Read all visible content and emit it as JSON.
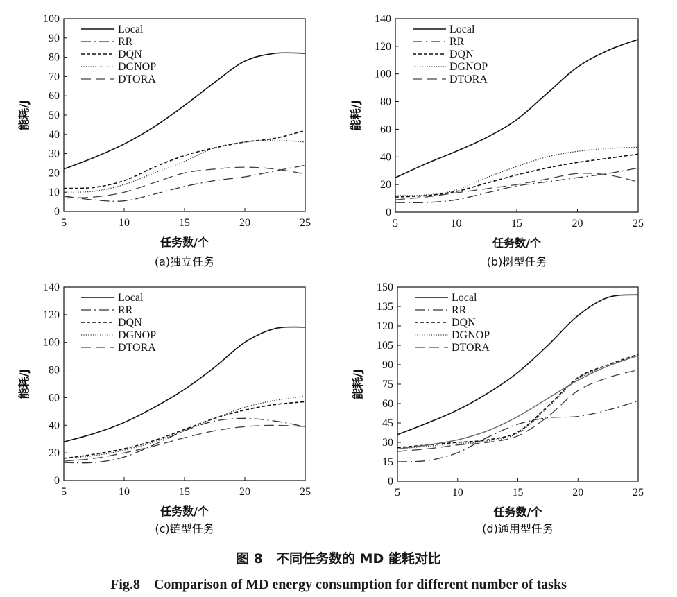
{
  "figure": {
    "caption_cn": "图 8　不同任务数的 MD 能耗对比",
    "caption_en": "Fig.8　Comparison of MD energy consumption for different number of tasks"
  },
  "chart_data": [
    {
      "type": "line",
      "subtitle": "(a)独立任务",
      "xlabel": "任务数/个",
      "ylabel": "能耗/J",
      "xlim": [
        5,
        25
      ],
      "ylim": [
        0,
        100
      ],
      "xticks": [
        5,
        10,
        15,
        20,
        25
      ],
      "yticks": [
        0,
        10,
        20,
        30,
        40,
        50,
        60,
        70,
        80,
        90,
        100
      ],
      "grid": false,
      "legend": "top-left",
      "x": [
        5,
        7.5,
        10,
        12.5,
        15,
        17.5,
        20,
        22.5,
        25
      ],
      "series": [
        {
          "name": "Local",
          "style": "solid",
          "values": [
            22,
            28,
            35,
            44,
            55,
            67,
            78,
            82,
            82
          ]
        },
        {
          "name": "RR",
          "style": "dashdot",
          "values": [
            8,
            6,
            5.5,
            9,
            13,
            16,
            18,
            21,
            24
          ]
        },
        {
          "name": "DQN",
          "style": "dashed",
          "values": [
            12,
            12.5,
            16,
            23,
            29,
            33,
            36,
            38,
            42
          ]
        },
        {
          "name": "DGNOP",
          "style": "dotted",
          "values": [
            10,
            10.5,
            14,
            20,
            26,
            33,
            36,
            37,
            36
          ]
        },
        {
          "name": "DTORA",
          "style": "longdash",
          "values": [
            7,
            7.5,
            10,
            15,
            20,
            22,
            23,
            22,
            19.5
          ]
        }
      ]
    },
    {
      "type": "line",
      "subtitle": "(b)树型任务",
      "xlabel": "任务数/个",
      "ylabel": "能耗/J",
      "xlim": [
        5,
        25
      ],
      "ylim": [
        0,
        140
      ],
      "xticks": [
        5,
        10,
        15,
        20,
        25
      ],
      "yticks": [
        0,
        20,
        40,
        60,
        80,
        100,
        120,
        140
      ],
      "grid": false,
      "legend": "top-left",
      "x": [
        5,
        7.5,
        10,
        12.5,
        15,
        17.5,
        20,
        22.5,
        25
      ],
      "series": [
        {
          "name": "Local",
          "style": "solid",
          "values": [
            25,
            35,
            44,
            54,
            67,
            86,
            105,
            117,
            125
          ]
        },
        {
          "name": "RR",
          "style": "dashdot",
          "values": [
            7,
            7,
            9,
            14,
            19,
            22,
            25,
            28,
            32
          ]
        },
        {
          "name": "DQN",
          "style": "dashed",
          "values": [
            11,
            12,
            15,
            21,
            27,
            32,
            36,
            39,
            42
          ]
        },
        {
          "name": "DGNOP",
          "style": "dotted",
          "values": [
            12,
            12.5,
            16,
            25,
            33,
            40,
            44,
            46,
            47
          ]
        },
        {
          "name": "DTORA",
          "style": "longdash",
          "values": [
            9,
            11,
            14,
            17,
            20,
            24,
            28,
            27,
            22
          ]
        }
      ]
    },
    {
      "type": "line",
      "subtitle": "(c)链型任务",
      "xlabel": "任务数/个",
      "ylabel": "能耗/J",
      "xlim": [
        5,
        25
      ],
      "ylim": [
        0,
        140
      ],
      "xticks": [
        5,
        10,
        15,
        20,
        25
      ],
      "yticks": [
        0,
        20,
        40,
        60,
        80,
        100,
        120,
        140
      ],
      "grid": false,
      "legend": "top-left",
      "x": [
        5,
        7.5,
        10,
        12.5,
        15,
        17.5,
        20,
        22.5,
        25
      ],
      "series": [
        {
          "name": "Local",
          "style": "solid",
          "values": [
            28,
            34,
            42,
            53,
            66,
            82,
            100,
            110,
            111
          ]
        },
        {
          "name": "RR",
          "style": "dashdot",
          "values": [
            13,
            13,
            17,
            26,
            36,
            43,
            45,
            43,
            39
          ]
        },
        {
          "name": "DQN",
          "style": "dashed",
          "values": [
            16,
            19,
            23,
            29,
            37,
            45,
            51,
            55,
            57
          ]
        },
        {
          "name": "DGNOP",
          "style": "dotted",
          "values": [
            16,
            18,
            22,
            28,
            36,
            45,
            53,
            58,
            61
          ]
        },
        {
          "name": "DTORA",
          "style": "longdash",
          "values": [
            14,
            16,
            20,
            25,
            31,
            36,
            39,
            40,
            39
          ]
        }
      ]
    },
    {
      "type": "line",
      "subtitle": "(d)通用型任务",
      "xlabel": "任务数/个",
      "ylabel": "能耗/J",
      "xlim": [
        5,
        25
      ],
      "ylim": [
        0,
        150
      ],
      "xticks": [
        5,
        10,
        15,
        20,
        25
      ],
      "yticks": [
        0,
        15,
        30,
        45,
        60,
        75,
        90,
        105,
        120,
        135,
        150
      ],
      "grid": false,
      "legend": "top-left",
      "x": [
        5,
        7.5,
        10,
        12.5,
        15,
        17.5,
        20,
        22.5,
        25
      ],
      "series": [
        {
          "name": "Local",
          "style": "solid",
          "values": [
            36,
            45,
            55,
            68,
            84,
            105,
            128,
            142,
            144
          ]
        },
        {
          "name": "RR",
          "style": "dashdot",
          "values": [
            15,
            16,
            22,
            34,
            44,
            49,
            50,
            55,
            62
          ]
        },
        {
          "name": "DQN",
          "style": "dashed",
          "values": [
            26,
            28,
            30,
            32,
            38,
            58,
            80,
            90,
            98
          ]
        },
        {
          "name": "DGNOP",
          "style": "dotted",
          "values": [
            25,
            27,
            29,
            31,
            37,
            57,
            79,
            89,
            97
          ]
        },
        {
          "name": "DTORA",
          "style": "longdash",
          "values": [
            23,
            25,
            28,
            30,
            35,
            50,
            70,
            80,
            86
          ]
        },
        {
          "name": "",
          "style": "solid-gray",
          "values": [
            25,
            28,
            32,
            39,
            50,
            64,
            78,
            89,
            97
          ]
        }
      ]
    }
  ]
}
